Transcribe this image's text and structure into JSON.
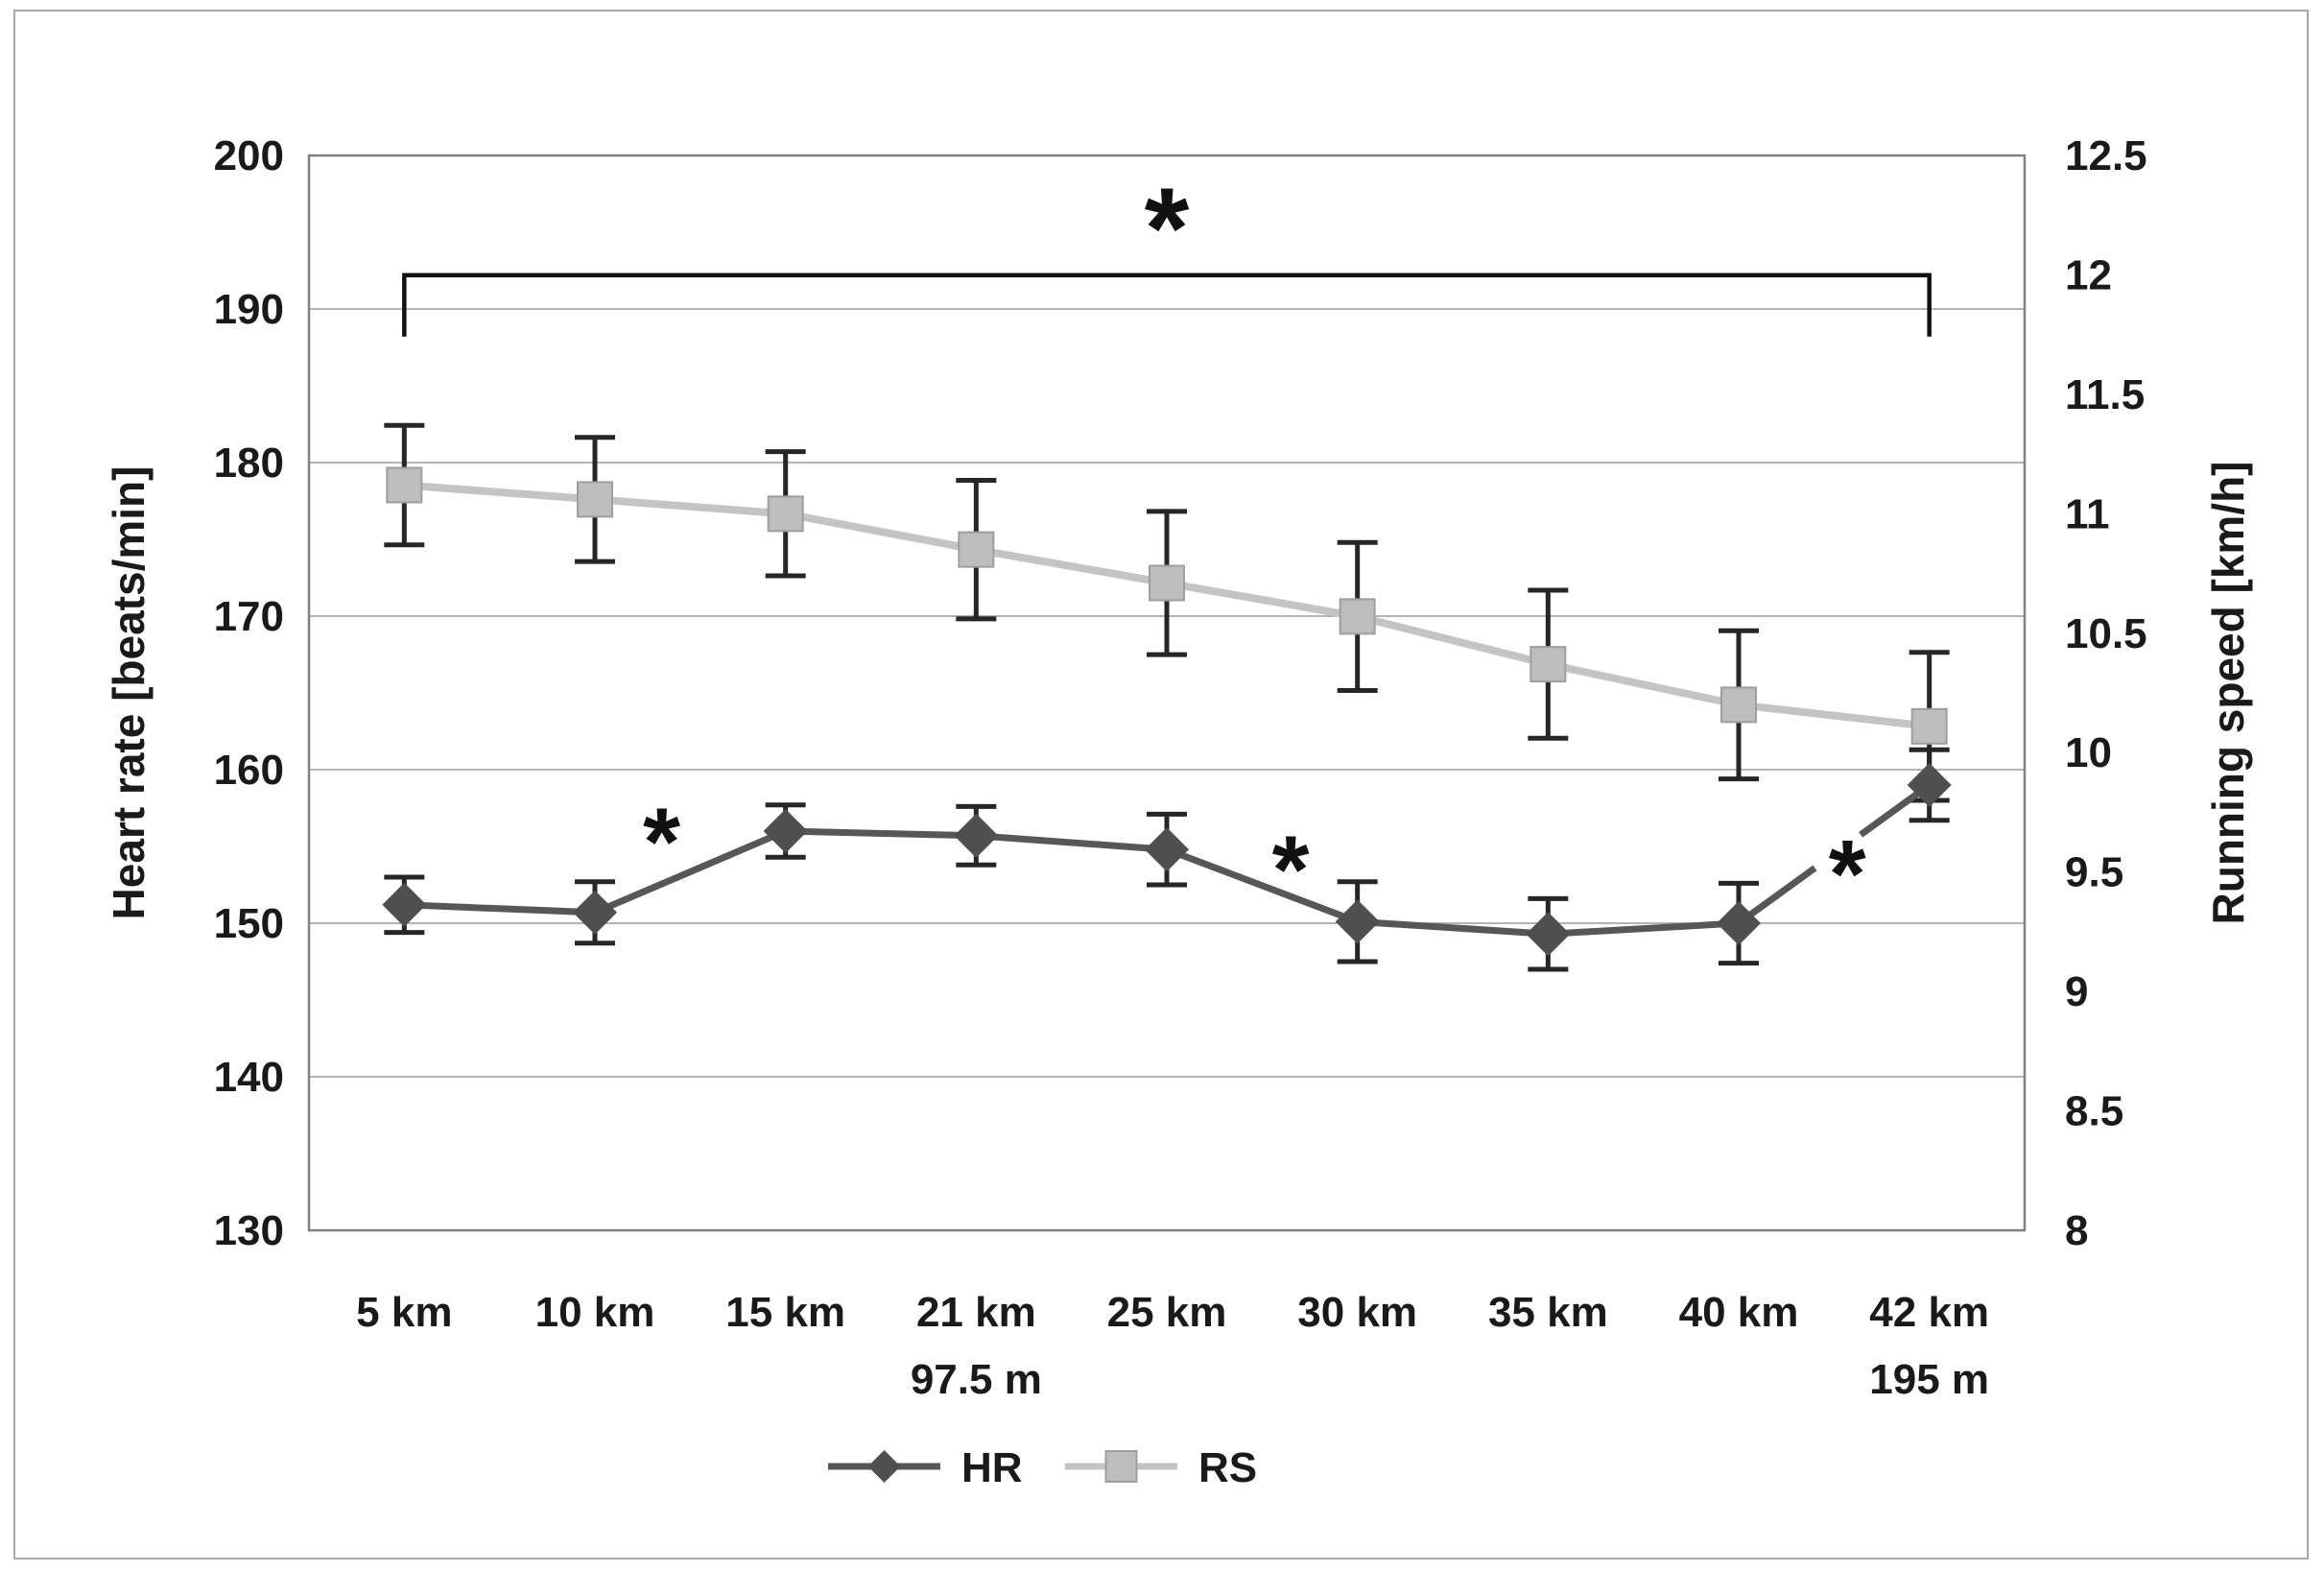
{
  "chart_data": {
    "type": "line",
    "title": "",
    "categories_line1": [
      "5 km",
      "10 km",
      "15 km",
      "21 km",
      "25 km",
      "30 km",
      "35 km",
      "40 km",
      "42 km"
    ],
    "categories_line2": [
      "",
      "",
      "",
      "97.5 m",
      "",
      "",
      "",
      "",
      "195 m"
    ],
    "series": [
      {
        "name": "HR",
        "axis": "left",
        "marker": "diamond",
        "values": [
          151.2,
          150.7,
          156.0,
          155.7,
          154.8,
          150.1,
          149.3,
          150.0,
          159.0
        ],
        "errors": [
          1.8,
          2.0,
          1.7,
          1.9,
          2.3,
          2.6,
          2.3,
          2.6,
          2.3
        ]
      },
      {
        "name": "RS",
        "axis": "right",
        "marker": "square",
        "values": [
          11.12,
          11.06,
          11.0,
          10.85,
          10.71,
          10.57,
          10.37,
          10.2,
          10.11
        ],
        "errors": [
          0.25,
          0.26,
          0.26,
          0.29,
          0.3,
          0.31,
          0.31,
          0.31,
          0.31
        ]
      }
    ],
    "y_left": {
      "label": "Heart rate [beats/min]",
      "min": 130,
      "max": 200,
      "step": 10,
      "ticks": [
        "200",
        "190",
        "180",
        "170",
        "160",
        "150",
        "140",
        "130"
      ]
    },
    "y_right": {
      "label": "Running speed [km/h]",
      "min": 8,
      "max": 12.5,
      "step": 0.5,
      "ticks": [
        "12.5",
        "12",
        "11.5",
        "11",
        "10.5",
        "10",
        "9.5",
        "9",
        "8.5",
        "8"
      ]
    },
    "grid": "horizontal",
    "legend_position": "bottom",
    "legend": [
      {
        "label": "HR"
      },
      {
        "label": "RS"
      }
    ],
    "annotations": {
      "bracket": {
        "from_category_index": 0,
        "to_category_index": 8,
        "hr_y": 192.2,
        "tick_drop_hr": 4.0,
        "star": "*",
        "star_hr_y": 196.6
      },
      "inner_stars": [
        {
          "between": [
            1,
            2
          ],
          "t": 0.35,
          "hr_y": 156.4,
          "glyph": "*"
        },
        {
          "between": [
            4,
            5
          ],
          "t": 0.65,
          "hr_y": 154.6,
          "glyph": "*"
        },
        {
          "between": [
            7,
            8
          ],
          "t": 0.57,
          "hr_y": 154.3,
          "glyph": "*"
        }
      ],
      "hr_line_gap_between_40_and_42km": {
        "t_start": 0.4,
        "t_end": 0.64
      }
    },
    "colors": {
      "hr_line": "#575757",
      "hr_marker": "#4f4f4f",
      "rs_line": "#c4c4c4",
      "rs_marker_fill": "#bdbdbd",
      "rs_marker_edge": "#9e9e9e",
      "error_bar": "#262626",
      "gridline": "#9b9b9b",
      "plot_border": "#808080",
      "text": "#1a1a1a",
      "annotation": "#111111",
      "figure_frame": "#a8a8a8",
      "background": "#ffffff"
    },
    "geometry": {
      "plot_left": 322,
      "plot_right": 2110,
      "plot_top": 162,
      "plot_bottom": 1282,
      "xlabel_y1": 1382,
      "xlabel_y2": 1452,
      "left_tick_x": 296,
      "right_tick_x": 2152,
      "left_title_x": 150,
      "right_title_x": 2338,
      "title_center_y": 722,
      "legend_y": 1528,
      "legend_hr_line": [
        863,
        980
      ],
      "legend_hr_text_x": 1002,
      "legend_rs_line": [
        1110,
        1227
      ],
      "legend_rs_text_x": 1249
    }
  }
}
